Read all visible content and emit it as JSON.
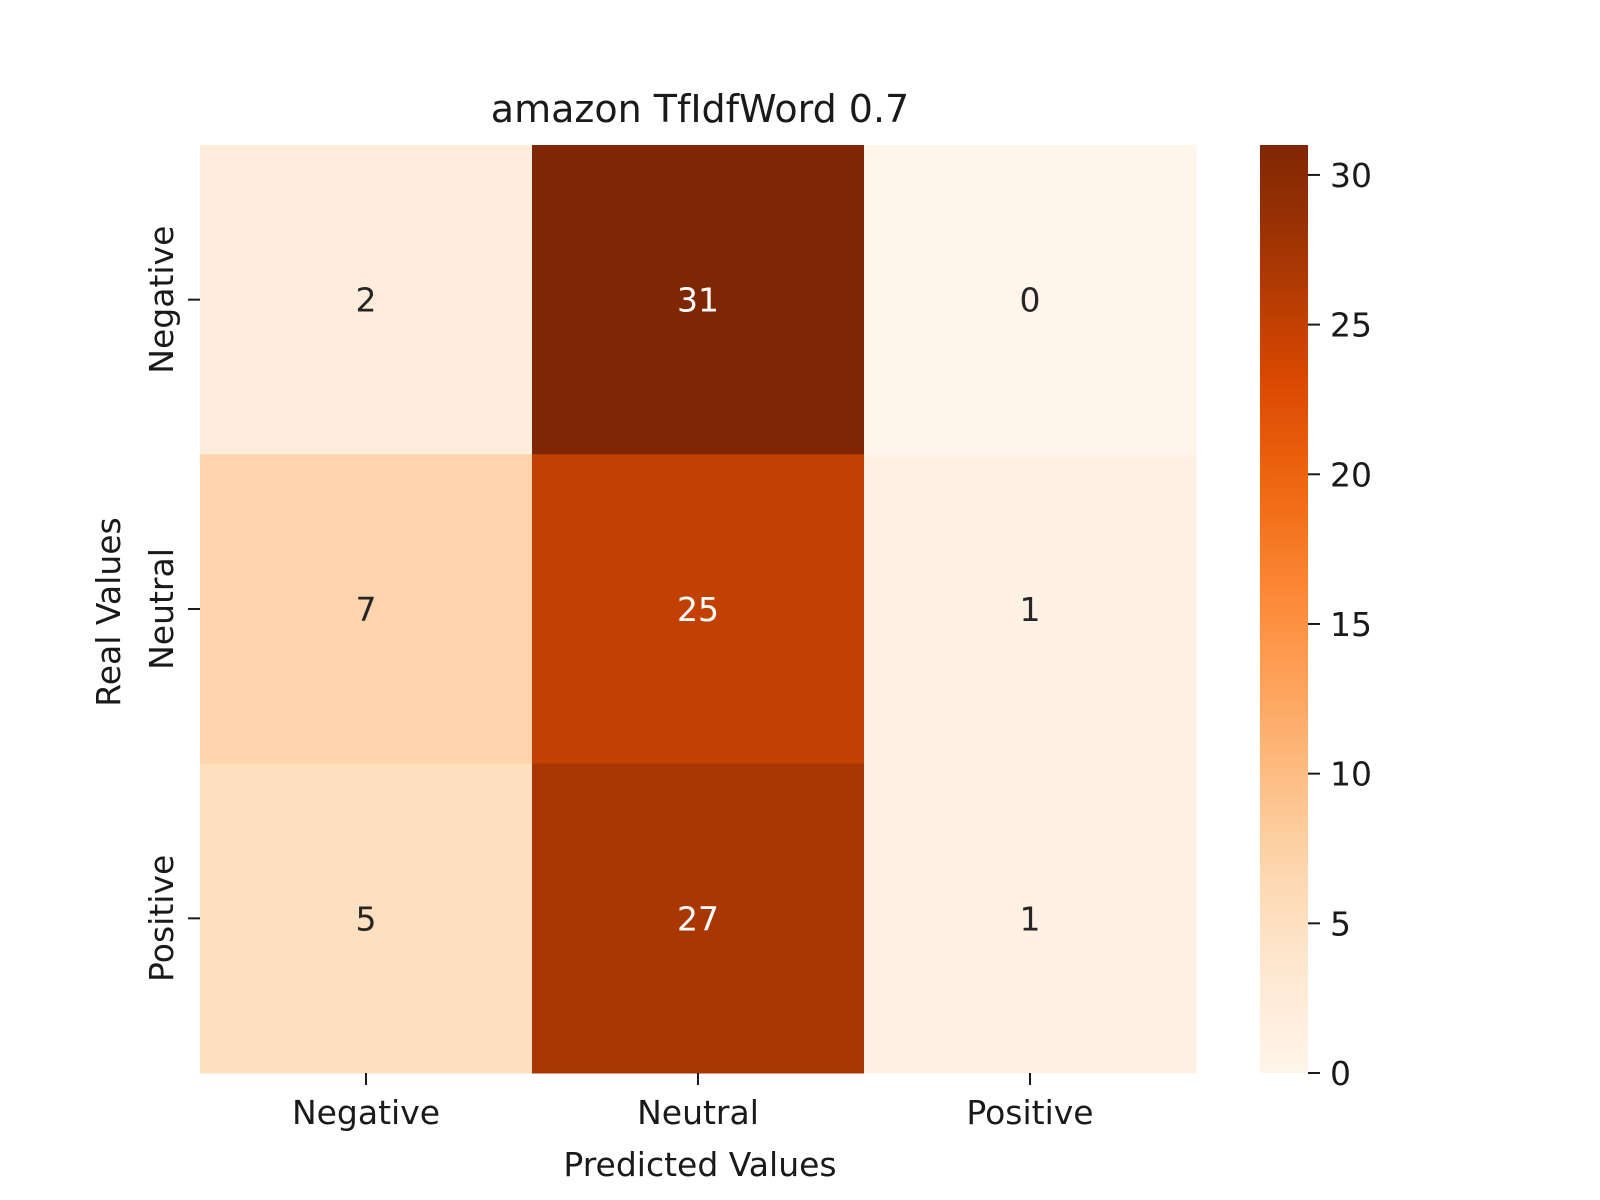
{
  "chart_data": {
    "type": "heatmap",
    "title": "amazon TfIdfWord 0.7",
    "xlabel": "Predicted Values",
    "ylabel": "Real Values",
    "x_categories": [
      "Negative",
      "Neutral",
      "Positive"
    ],
    "y_categories": [
      "Negative",
      "Neutral",
      "Positive"
    ],
    "values": [
      [
        2,
        31,
        0
      ],
      [
        7,
        25,
        1
      ],
      [
        5,
        27,
        1
      ]
    ],
    "colormap": "Oranges",
    "colorbar": {
      "range": [
        0,
        31
      ],
      "ticks": [
        0,
        5,
        10,
        15,
        20,
        25,
        30
      ]
    }
  }
}
